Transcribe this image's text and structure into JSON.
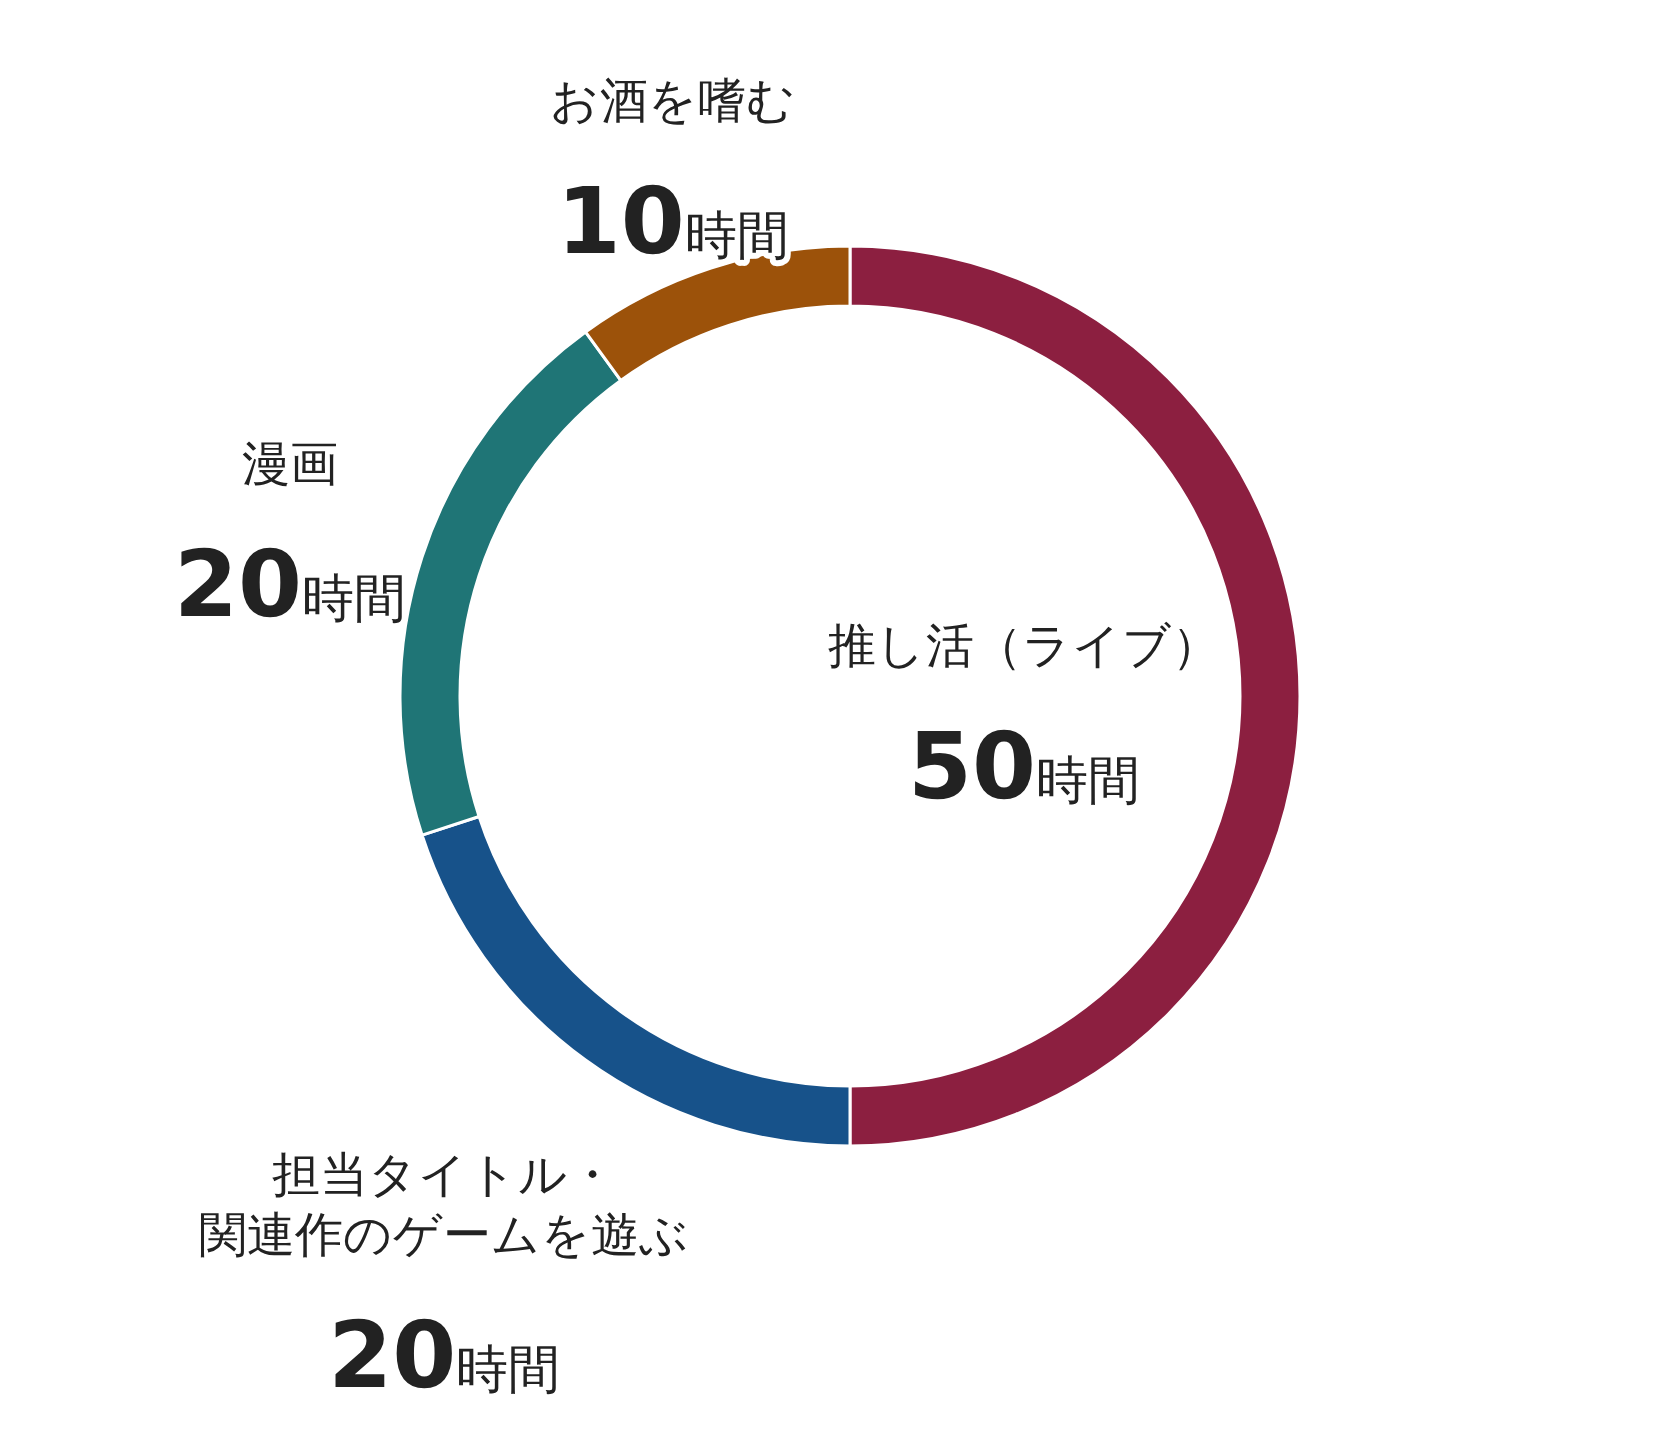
{
  "chart_data": {
    "type": "donut",
    "categories": [
      "推し活（ライブ）",
      "担当タイトル・関連作のゲームを遊ぶ",
      "漫画",
      "お酒を嗜む"
    ],
    "values": [
      50,
      20,
      20,
      10
    ],
    "colors": [
      "#8c1f40",
      "#17528a",
      "#1f7576",
      "#9c520a"
    ],
    "value_labels": [
      "50時間",
      "20時間",
      "20時間",
      "10時間"
    ]
  }
}
